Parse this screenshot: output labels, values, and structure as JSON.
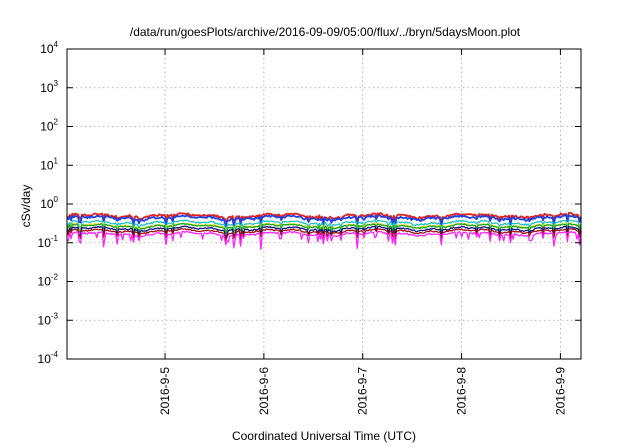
{
  "chart_data": {
    "type": "line",
    "title": "/data/run/goesPlots/archive/2016-09-09/05:00/flux/../bryn/5daysMoon.plot",
    "xlabel": "Coordinated Universal Time (UTC)",
    "ylabel": "cSv/day",
    "yscale": "log",
    "ylim": [
      0.0001,
      10000
    ],
    "y_ticks": [
      {
        "value": 0.0001,
        "base": "10",
        "exp": "-4"
      },
      {
        "value": 0.001,
        "base": "10",
        "exp": "-3"
      },
      {
        "value": 0.01,
        "base": "10",
        "exp": "-2"
      },
      {
        "value": 0.1,
        "base": "10",
        "exp": "-1"
      },
      {
        "value": 1,
        "base": "10",
        "exp": "0"
      },
      {
        "value": 10,
        "base": "10",
        "exp": "1"
      },
      {
        "value": 100,
        "base": "10",
        "exp": "2"
      },
      {
        "value": 1000,
        "base": "10",
        "exp": "3"
      },
      {
        "value": 10000,
        "base": "10",
        "exp": "4"
      }
    ],
    "xlim": [
      "2016-09-04 00:12",
      "2016-09-09 05:00"
    ],
    "x_ticks": [
      {
        "value": "2016-09-05 00:00",
        "label": "2016-9-5"
      },
      {
        "value": "2016-09-06 00:00",
        "label": "2016-9-6"
      },
      {
        "value": "2016-09-07 00:00",
        "label": "2016-9-7"
      },
      {
        "value": "2016-09-08 00:00",
        "label": "2016-9-8"
      },
      {
        "value": "2016-09-09 00:00",
        "label": "2016-9-9"
      }
    ],
    "grid": true,
    "series": [
      {
        "color": "#e02020",
        "base": 0.5,
        "amp": 0.13,
        "dip": 0.12
      },
      {
        "color": "#2040e0",
        "base": 0.44,
        "amp": 0.12,
        "dip": 0.14
      },
      {
        "color": "#20c0c0",
        "base": 0.33,
        "amp": 0.1,
        "dip": 0.14
      },
      {
        "color": "#e8e820",
        "base": 0.28,
        "amp": 0.08,
        "dip": 0.15
      },
      {
        "color": "#20a020",
        "base": 0.27,
        "amp": 0.08,
        "dip": 0.15
      },
      {
        "color": "#101080",
        "base": 0.23,
        "amp": 0.08,
        "dip": 0.17
      },
      {
        "color": "#a01010",
        "base": 0.2,
        "amp": 0.08,
        "dip": 0.18
      },
      {
        "color": "#ff20ff",
        "base": 0.17,
        "amp": 0.1,
        "dip": 0.26
      }
    ]
  }
}
